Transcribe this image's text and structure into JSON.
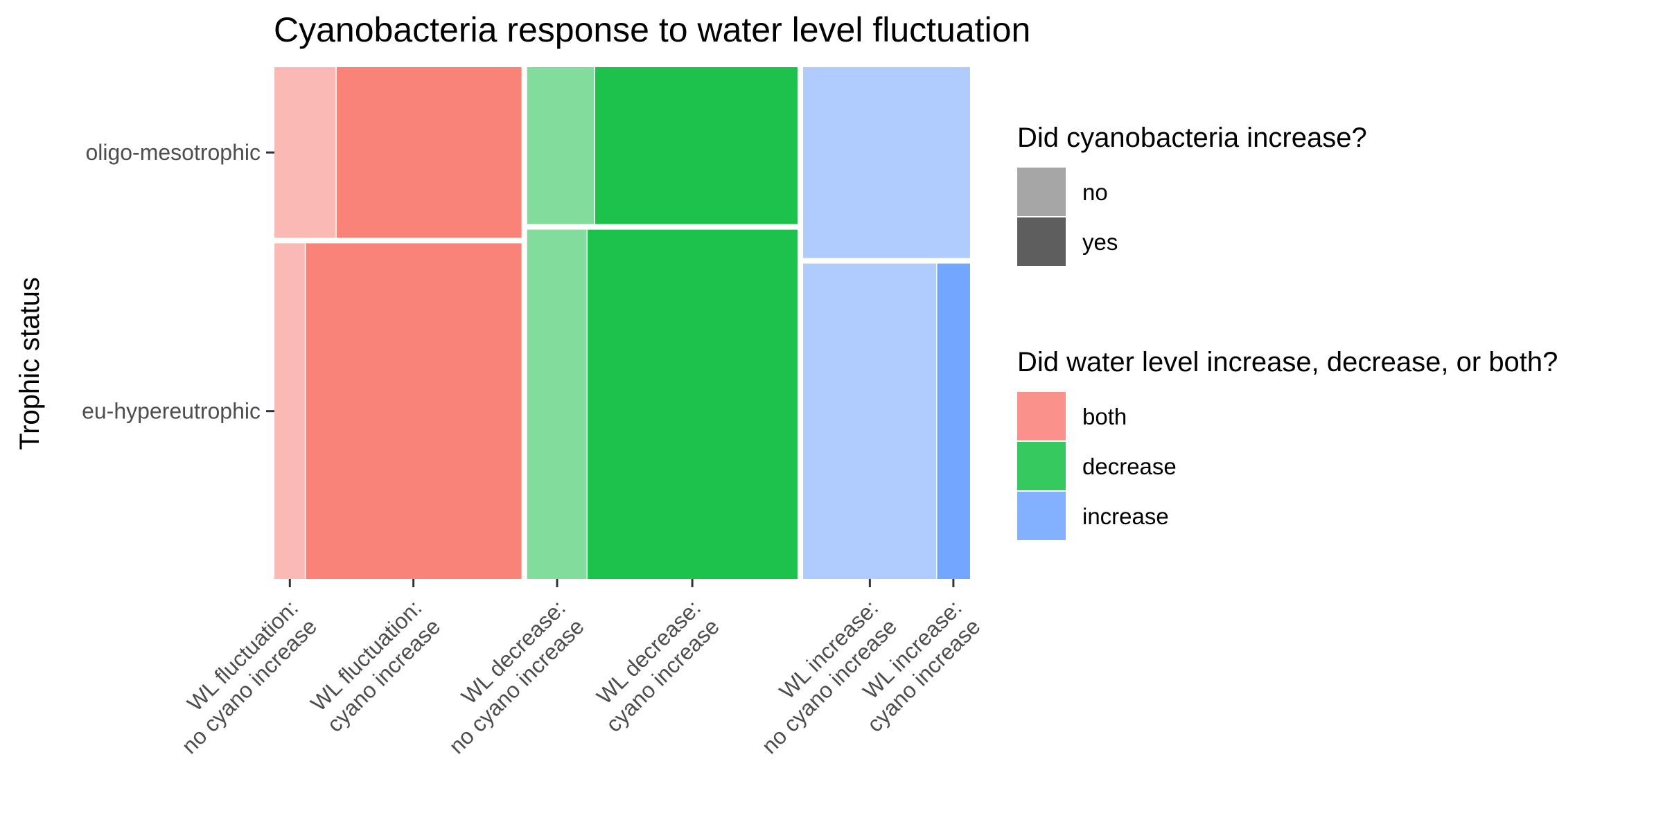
{
  "chart_data": {
    "type": "mosaic",
    "title": "Cyanobacteria response to water level fluctuation",
    "ylabel": "Trophic status",
    "xlabel": "",
    "y_categories": [
      "oligo-mesotrophic",
      "eu-hypereutrophic"
    ],
    "x_tick_labels": [
      [
        "WL fluctuation:",
        "no cyano increase"
      ],
      [
        "WL fluctuation:",
        "cyano increase"
      ],
      [
        "WL decrease:",
        "no cyano increase"
      ],
      [
        "WL decrease:",
        "cyano increase"
      ],
      [
        "WL increase:",
        "no cyano increase"
      ],
      [
        "WL increase:",
        "cyano increase"
      ]
    ],
    "groups": [
      {
        "name": "both",
        "color": "#F8766D",
        "width_fraction": 0.361,
        "rows": [
          {
            "trophic": "oligo-mesotrophic",
            "height_fraction": 0.337,
            "no_fraction": 0.25,
            "yes_fraction": 0.75
          },
          {
            "trophic": "eu-hypereutrophic",
            "height_fraction": 0.663,
            "no_fraction": 0.125,
            "yes_fraction": 0.875
          }
        ]
      },
      {
        "name": "decrease",
        "color": "#00BA38",
        "width_fraction": 0.395,
        "rows": [
          {
            "trophic": "oligo-mesotrophic",
            "height_fraction": 0.31,
            "no_fraction": 0.25,
            "yes_fraction": 0.75
          },
          {
            "trophic": "eu-hypereutrophic",
            "height_fraction": 0.69,
            "no_fraction": 0.222,
            "yes_fraction": 0.778
          }
        ]
      },
      {
        "name": "increase",
        "color": "#619CFF",
        "width_fraction": 0.244,
        "rows": [
          {
            "trophic": "oligo-mesotrophic",
            "height_fraction": 0.377,
            "no_fraction": 1.0,
            "yes_fraction": 0.0
          },
          {
            "trophic": "eu-hypereutrophic",
            "height_fraction": 0.623,
            "no_fraction": 0.8,
            "yes_fraction": 0.2
          }
        ]
      }
    ],
    "legends": [
      {
        "title": "Did cyanobacteria increase?",
        "items": [
          {
            "label": "no",
            "color": "#A6A6A6"
          },
          {
            "label": "yes",
            "color": "#5E5E5E"
          }
        ]
      },
      {
        "title": "Did water level increase, decrease, or both?",
        "items": [
          {
            "label": "both",
            "color": "#FA918B"
          },
          {
            "label": "decrease",
            "color": "#35C95F"
          },
          {
            "label": "increase",
            "color": "#84B1FF"
          }
        ]
      }
    ],
    "colors": {
      "both_no": "#FBB9B5",
      "both_yes": "#FA8379",
      "decrease_no": "#82DC9B",
      "decrease_yes": "#1CC24C",
      "increase_no": "#B0CCFF",
      "increase_yes": "#73A6FF"
    },
    "legend_position": "right"
  }
}
